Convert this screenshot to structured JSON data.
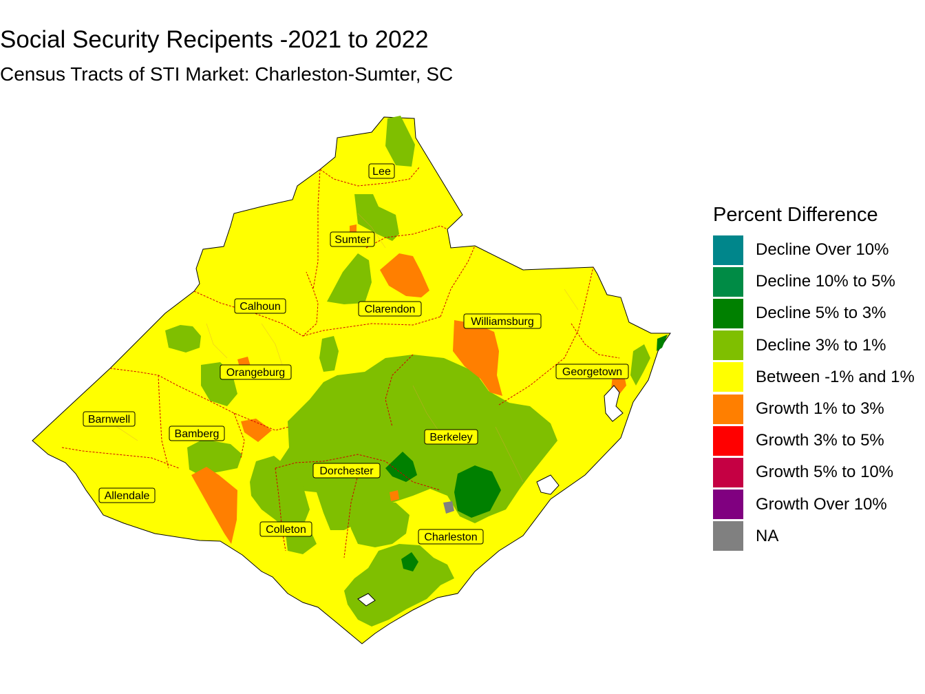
{
  "title": "Social Security Recipents -2021 to 2022",
  "subtitle": "Census Tracts of STI Market: Charleston-Sumter, SC",
  "legend": {
    "title": "Percent Difference",
    "items": [
      {
        "label": "Decline Over 10%",
        "color": "#00868b"
      },
      {
        "label": "Decline 10% to 5%",
        "color": "#008b45"
      },
      {
        "label": "Decline 5% to 3%",
        "color": "#008000"
      },
      {
        "label": "Decline 3% to 1%",
        "color": "#7fbf00"
      },
      {
        "label": "Between -1% and 1%",
        "color": "#ffff00"
      },
      {
        "label": "Growth 1% to 3%",
        "color": "#ff7f00"
      },
      {
        "label": "Growth 3% to 5%",
        "color": "#ff0000"
      },
      {
        "label": "Growth 5% to 10%",
        "color": "#c50043"
      },
      {
        "label": "Growth Over 10%",
        "color": "#800080"
      },
      {
        "label": "NA",
        "color": "#808080"
      }
    ]
  },
  "counties": {
    "lee": "Lee",
    "sumter": "Sumter",
    "calhoun": "Calhoun",
    "clarendon": "Clarendon",
    "williamsburg": "Williamsburg",
    "orangeburg": "Orangeburg",
    "georgetown": "Georgetown",
    "barnwell": "Barnwell",
    "bamberg": "Bamberg",
    "berkeley": "Berkeley",
    "dorchester": "Dorchester",
    "allendale": "Allendale",
    "colleton": "Colleton",
    "charleston": "Charleston"
  }
}
